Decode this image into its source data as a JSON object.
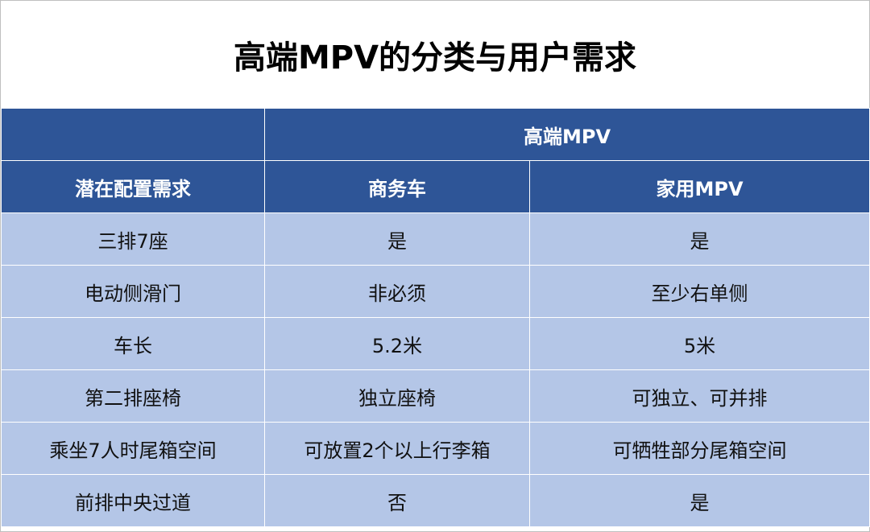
{
  "title": "高端MPV的分类与用户需求",
  "header": {
    "group_label": "高端MPV",
    "columns": [
      "潜在配置需求",
      "商务车",
      "家用MPV"
    ]
  },
  "rows": [
    [
      "三排7座",
      "是",
      "是"
    ],
    [
      "电动侧滑门",
      "非必须",
      "至少右单侧"
    ],
    [
      "车长",
      "5.2米",
      "5米"
    ],
    [
      "第二排座椅",
      "独立座椅",
      "可独立、可并排"
    ],
    [
      "乘坐7人时尾箱空间",
      "可放置2个以上行李箱",
      "可牺牲部分尾箱空间"
    ],
    [
      "前排中央过道",
      "否",
      "是"
    ]
  ],
  "colors": {
    "header_bg": "#2e5597",
    "body_bg": "#b4c6e7"
  }
}
